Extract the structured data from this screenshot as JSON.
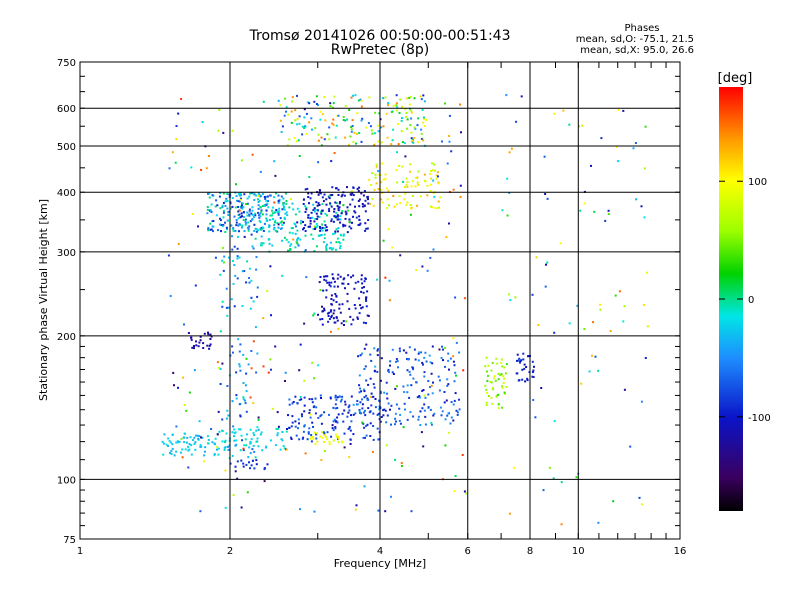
{
  "chart_data": {
    "type": "scatter",
    "title": "Tromsø 20141026 00:50:00-00:51:43",
    "subtitle": "RwPretec (8p)",
    "phase_header": "Phases",
    "phase_stats": [
      "mean, sd,O: -75.1, 21.5",
      "mean, sd,X:  95.0, 26.6"
    ],
    "xlabel": "Frequency [MHz]",
    "ylabel": "Stationary phase Virtual Height [km]",
    "x_scale": "log",
    "y_scale": "log",
    "xlim": [
      1,
      16
    ],
    "ylim": [
      75,
      750
    ],
    "x_ticks": [
      1,
      2,
      4,
      6,
      8,
      10,
      16
    ],
    "x_tick_labels": [
      "1",
      "2",
      "4",
      "6",
      "8",
      "10",
      "16"
    ],
    "y_ticks": [
      75,
      100,
      200,
      300,
      400,
      500,
      600,
      750
    ],
    "y_tick_labels": [
      "75",
      "100",
      "200",
      "300",
      "400",
      "500",
      "600",
      "750"
    ],
    "grid": true,
    "colorbar": {
      "label": "[deg]",
      "range": [
        -180,
        180
      ],
      "ticks": [
        100,
        0,
        -100
      ],
      "tick_labels": [
        "100",
        "0",
        "-100"
      ]
    },
    "clusters": [
      {
        "x": [
          1.45,
          1.9
        ],
        "y": [
          112,
          125
        ],
        "phase": [
          -40,
          -10
        ],
        "n": 70
      },
      {
        "x": [
          1.9,
          2.6
        ],
        "y": [
          115,
          128
        ],
        "phase": [
          -30,
          -5
        ],
        "n": 60
      },
      {
        "x": [
          2.0,
          2.4
        ],
        "y": [
          105,
          110
        ],
        "phase": [
          -100,
          -80
        ],
        "n": 18
      },
      {
        "x": [
          1.65,
          1.85
        ],
        "y": [
          185,
          205
        ],
        "phase": [
          -130,
          -110
        ],
        "n": 25
      },
      {
        "x": [
          1.8,
          2.6
        ],
        "y": [
          330,
          400
        ],
        "phase": [
          -100,
          10
        ],
        "n": 220
      },
      {
        "x": [
          2.3,
          3.4
        ],
        "y": [
          300,
          380
        ],
        "phase": [
          -30,
          10
        ],
        "n": 150
      },
      {
        "x": [
          2.8,
          3.8
        ],
        "y": [
          330,
          410
        ],
        "phase": [
          -120,
          -90
        ],
        "n": 160
      },
      {
        "x": [
          2.5,
          5.0
        ],
        "y": [
          500,
          640
        ],
        "phase": [
          -100,
          150
        ],
        "n": 170
      },
      {
        "x": [
          3.8,
          5.3
        ],
        "y": [
          370,
          460
        ],
        "phase": [
          60,
          130
        ],
        "n": 90
      },
      {
        "x": [
          3.0,
          3.8
        ],
        "y": [
          210,
          270
        ],
        "phase": [
          -120,
          -90
        ],
        "n": 110
      },
      {
        "x": [
          2.6,
          4.0
        ],
        "y": [
          120,
          150
        ],
        "phase": [
          -110,
          -60
        ],
        "n": 150
      },
      {
        "x": [
          3.6,
          5.8
        ],
        "y": [
          130,
          190
        ],
        "phase": [
          -110,
          -40
        ],
        "n": 200
      },
      {
        "x": [
          2.9,
          3.4
        ],
        "y": [
          118,
          126
        ],
        "phase": [
          80,
          110
        ],
        "n": 25
      },
      {
        "x": [
          6.5,
          7.2
        ],
        "y": [
          140,
          180
        ],
        "phase": [
          30,
          90
        ],
        "n": 50
      },
      {
        "x": [
          7.5,
          8.2
        ],
        "y": [
          160,
          185
        ],
        "phase": [
          -110,
          -90
        ],
        "n": 30
      },
      {
        "x": [
          7.0,
          14.0
        ],
        "y": [
          80,
          640
        ],
        "phase": [
          -120,
          150
        ],
        "n": 90
      },
      {
        "x": [
          1.9,
          2.3
        ],
        "y": [
          110,
          400
        ],
        "phase": [
          -90,
          0
        ],
        "n": 120
      },
      {
        "x": [
          1.5,
          6.0
        ],
        "y": [
          85,
          630
        ],
        "phase": [
          -150,
          170
        ],
        "n": 260
      }
    ]
  }
}
